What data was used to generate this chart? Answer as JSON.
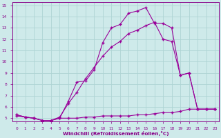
{
  "line1_x": [
    0,
    1,
    2,
    3,
    4,
    5,
    6,
    7,
    8,
    9,
    10,
    11,
    12,
    13,
    14,
    15,
    16,
    17,
    18,
    19,
    20,
    21,
    22,
    23
  ],
  "line1_y": [
    5.3,
    5.1,
    5.0,
    4.8,
    4.8,
    5.0,
    6.5,
    8.2,
    8.3,
    9.3,
    11.7,
    13.0,
    13.3,
    14.3,
    14.5,
    14.8,
    13.4,
    13.4,
    13.0,
    8.8,
    9.0,
    5.8,
    5.8,
    5.8
  ],
  "line2_x": [
    0,
    1,
    2,
    3,
    4,
    5,
    6,
    7,
    8,
    9,
    10,
    11,
    12,
    13,
    14,
    15,
    16,
    17,
    18,
    19,
    20,
    21,
    22,
    23
  ],
  "line2_y": [
    5.3,
    5.1,
    5.0,
    4.8,
    4.8,
    5.1,
    6.3,
    7.3,
    8.5,
    9.5,
    10.5,
    11.3,
    11.8,
    12.5,
    12.8,
    13.2,
    13.5,
    12.0,
    11.8,
    8.8,
    9.0,
    5.8,
    5.8,
    5.8
  ],
  "line3_x": [
    0,
    1,
    2,
    3,
    4,
    5,
    6,
    7,
    8,
    9,
    10,
    11,
    12,
    13,
    14,
    15,
    16,
    17,
    18,
    19,
    20,
    21,
    22,
    23
  ],
  "line3_y": [
    5.2,
    5.1,
    5.0,
    4.8,
    4.8,
    5.0,
    5.0,
    5.0,
    5.1,
    5.1,
    5.2,
    5.2,
    5.2,
    5.2,
    5.3,
    5.3,
    5.4,
    5.5,
    5.5,
    5.6,
    5.8,
    5.8,
    5.8,
    5.8
  ],
  "line_color": "#990099",
  "marker": "+",
  "markersize": 3,
  "linewidth": 0.8,
  "xlim_min": -0.5,
  "xlim_max": 23.5,
  "ylim_min": 4.7,
  "ylim_max": 15.3,
  "xticks": [
    0,
    1,
    2,
    3,
    4,
    5,
    6,
    7,
    8,
    9,
    10,
    11,
    12,
    13,
    14,
    15,
    16,
    17,
    18,
    19,
    20,
    21,
    22,
    23
  ],
  "yticks": [
    5,
    6,
    7,
    8,
    9,
    10,
    11,
    12,
    13,
    14,
    15
  ],
  "xlabel": "Windchill (Refroidissement éolien,°C)",
  "bg_color": "#ceeaea",
  "grid_color": "#aed4d4",
  "axis_color": "#880088",
  "tick_color": "#880088",
  "label_color": "#880088",
  "tick_fontsize": 4.2,
  "xlabel_fontsize": 5.2
}
